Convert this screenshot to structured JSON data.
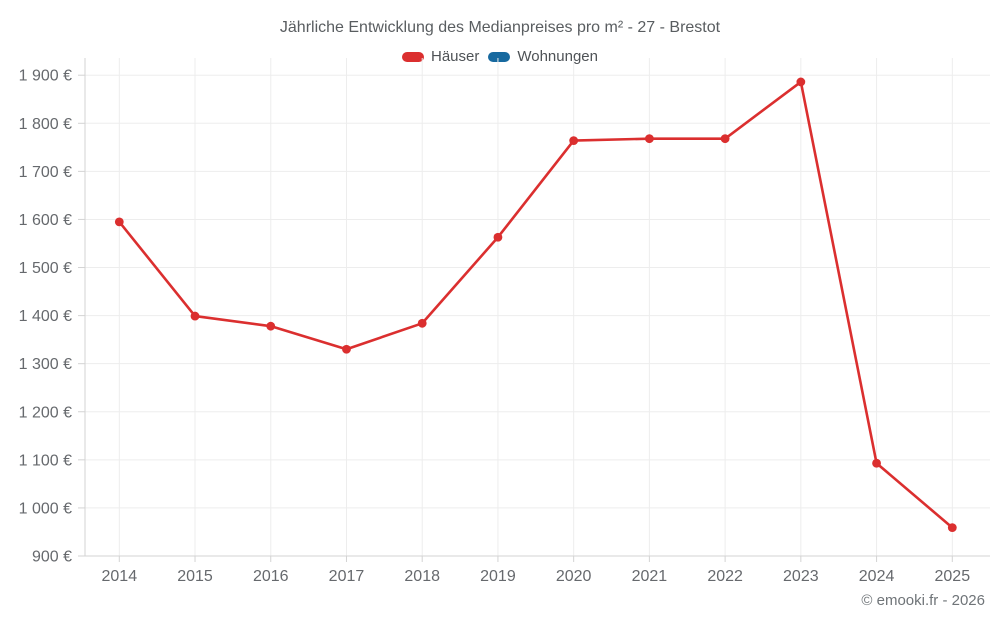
{
  "title": "Jährliche Entwicklung des Medianpreises pro m² - 27 - Brestot",
  "legend": [
    {
      "label": "Häuser",
      "color": "#db2f2f"
    },
    {
      "label": "Wohnungen",
      "color": "#17699f"
    }
  ],
  "footer": "© emooki.fr - 2026",
  "chart_data": {
    "type": "line",
    "title": "Jährliche Entwicklung des Medianpreises pro m² - 27 - Brestot",
    "categories": [
      "2014",
      "2015",
      "2016",
      "2017",
      "2018",
      "2019",
      "2020",
      "2021",
      "2022",
      "2023",
      "2024",
      "2025"
    ],
    "series": [
      {
        "name": "Häuser",
        "color": "#db2f2f",
        "values": [
          1595,
          1399,
          1378,
          1330,
          1384,
          1563,
          1764,
          1768,
          1768,
          1886,
          1093,
          959
        ]
      },
      {
        "name": "Wohnungen",
        "color": "#17699f",
        "values": []
      }
    ],
    "xlabel": "",
    "ylabel": "",
    "ylim": [
      900,
      1900
    ],
    "y_ticks": [
      900,
      1000,
      1100,
      1200,
      1300,
      1400,
      1500,
      1600,
      1700,
      1800,
      1900
    ],
    "y_tick_labels": [
      "900 €",
      "1 000 €",
      "1 100 €",
      "1 200 €",
      "1 300 €",
      "1 400 €",
      "1 500 €",
      "1 600 €",
      "1 700 €",
      "1 800 €",
      "1 900 €"
    ],
    "currency_suffix": "€",
    "grid": true,
    "legend_position": "top"
  }
}
